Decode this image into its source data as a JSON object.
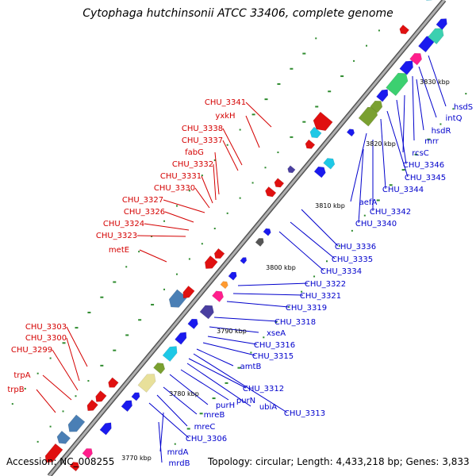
{
  "title": "Cytophaga hutchinsonii ATCC 33406, complete genome",
  "footer": {
    "accession": "Accession: NC_008255",
    "topology": "Topology: circular; Length: 4,433,218 bp; Genes: 3,833"
  },
  "colors": {
    "reverse_strand_label": "#d40000",
    "forward_strand_label": "#0000cc",
    "backbone": "#8c8c8c",
    "gc_dot": "#2e8b2e"
  },
  "kbp_ticks": [
    "3770 kbp",
    "3780 kbp",
    "3790 kbp",
    "3800 kbp",
    "3810 kbp",
    "3820 kbp",
    "3830 kbp"
  ],
  "genes_reverse": [
    "CHU_3341",
    "yxkH",
    "CHU_3338",
    "CHU_3337",
    "fabG",
    "CHU_3332",
    "CHU_3331",
    "CHU_3330",
    "CHU_3327",
    "CHU_3326",
    "CHU_3324",
    "CHU_3323",
    "metE",
    "CHU_3303",
    "CHU_3300",
    "CHU_3299",
    "trpA",
    "trpB"
  ],
  "genes_forward": [
    "hsdS",
    "intQ",
    "mrr",
    "hsdR",
    "rcsC",
    "CHU_3346",
    "CHU_3345",
    "CHU_3344",
    "aefA",
    "CHU_3342",
    "CHU_3340",
    "CHU_3336",
    "CHU_3335",
    "CHU_3334",
    "CHU_3322",
    "CHU_3321",
    "CHU_3319",
    "CHU_3318",
    "xseA",
    "CHU_3316",
    "CHU_3315",
    "amtB",
    "CHU_3312",
    "CHU_3313",
    "ubiA",
    "purN",
    "purH",
    "mreB",
    "mreC",
    "CHU_3306",
    "mrdA",
    "mrdB"
  ]
}
